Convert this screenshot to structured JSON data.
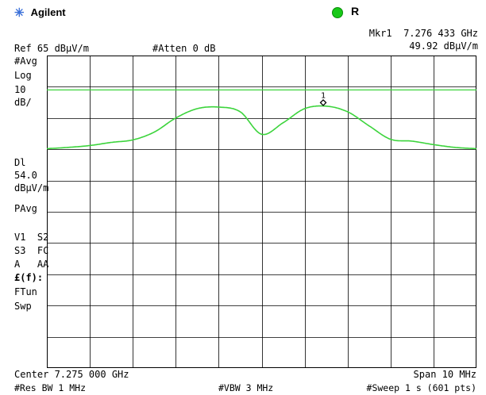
{
  "header": {
    "brand": "Agilent",
    "indicator_label": "R",
    "indicator_color": "#18c918",
    "marker_readout_freq": "Mkr1  7.276 433 GHz",
    "marker_readout_ampl": "49.92 dBμV/m",
    "ref_level": "Ref 65 dBμV/m",
    "attenuation": "#Atten 0 dB"
  },
  "left_panel": {
    "avg": "#Avg",
    "scale_type": "Log",
    "scale_value": "10",
    "scale_unit": "dB/",
    "dl_label": "Dl",
    "dl_value": "54.0",
    "dl_unit": "dBμV/m",
    "pavg": "PAvg",
    "trace_modes_1": "V1  S2",
    "trace_modes_2": "S3  FC",
    "trace_modes_3": "A   AA",
    "ff_label": "£(f):",
    "ftun": "FTun",
    "swp": "Swp"
  },
  "footer": {
    "center": "Center 7.275 000 GHz",
    "span": "Span 10 MHz",
    "res_bw": "#Res BW 1 MHz",
    "vbw": "#VBW 3 MHz",
    "sweep": "#Sweep 1 s (601 pts)"
  },
  "marker": {
    "label": "1"
  },
  "colors": {
    "trace": "#3cd43c",
    "display_line": "#3cd43c",
    "grid": "#000000"
  },
  "chart_data": {
    "type": "line",
    "x_unit": "GHz",
    "y_unit": "dBμV/m",
    "xlim": [
      7.27,
      7.28
    ],
    "ylim": [
      -35,
      65
    ],
    "y_scale": "log, 10 dB/div",
    "display_line": 54.0,
    "marker": {
      "x": 7.276433,
      "y": 49.92
    },
    "series": [
      {
        "x": [
          7.27,
          7.2705,
          7.271,
          7.2715,
          7.272,
          7.2725,
          7.273,
          7.2735,
          7.274,
          7.2745,
          7.275,
          7.2755,
          7.276,
          7.2765,
          7.277,
          7.2775,
          7.278,
          7.2785,
          7.279,
          7.2795,
          7.28
        ],
        "y": [
          35.2,
          35.6,
          36.2,
          37.2,
          38.0,
          40.5,
          45.0,
          48.0,
          48.5,
          47.0,
          39.8,
          43.5,
          48.0,
          48.8,
          47.0,
          42.5,
          38.2,
          37.6,
          36.5,
          35.6,
          35.2
        ]
      }
    ]
  }
}
